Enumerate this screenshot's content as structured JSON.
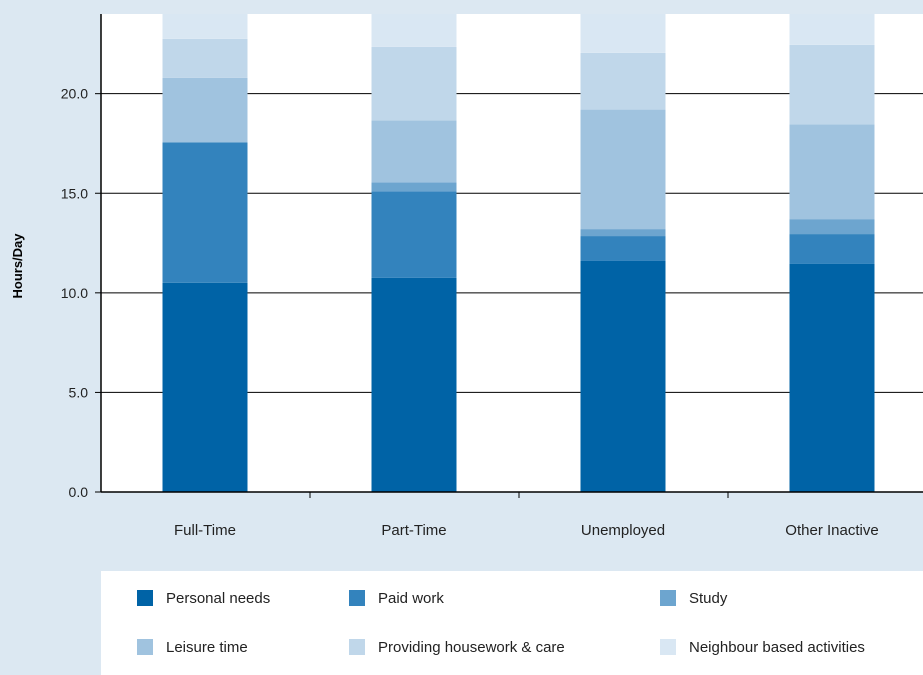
{
  "chart_data": {
    "type": "bar",
    "stacked": true,
    "title": "",
    "xlabel": "",
    "ylabel": "Hours/Day",
    "ylim": [
      0,
      24
    ],
    "yticks": [
      "0.0",
      "5.0",
      "10.0",
      "15.0",
      "20.0"
    ],
    "grid": "horizontal",
    "legend_position": "bottom",
    "categories": [
      "Full-Time",
      "Part-Time",
      "Unemployed",
      "Other Inactive"
    ],
    "series": [
      {
        "name": "Personal needs",
        "color": "#0063a6",
        "values": [
          10.5,
          10.75,
          11.6,
          11.45
        ]
      },
      {
        "name": "Paid work",
        "color": "#3383bd",
        "values": [
          7.05,
          4.35,
          1.25,
          1.5
        ]
      },
      {
        "name": "Study",
        "color": "#6da5cf",
        "values": [
          0.0,
          0.45,
          0.35,
          0.75
        ]
      },
      {
        "name": "Leisure time",
        "color": "#a0c3df",
        "values": [
          3.25,
          3.1,
          6.0,
          4.75
        ]
      },
      {
        "name": "Providing housework & care",
        "color": "#c0d7ea",
        "values": [
          1.95,
          3.7,
          2.85,
          4.0
        ]
      },
      {
        "name": "Neighbour based activities",
        "color": "#d9e7f3",
        "values": [
          1.25,
          1.65,
          1.95,
          1.55
        ]
      }
    ]
  }
}
